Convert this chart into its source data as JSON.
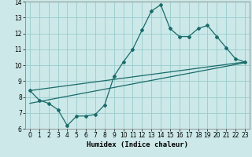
{
  "xlabel": "Humidex (Indice chaleur)",
  "xlim": [
    -0.5,
    23.5
  ],
  "ylim": [
    6,
    14
  ],
  "yticks": [
    6,
    7,
    8,
    9,
    10,
    11,
    12,
    13,
    14
  ],
  "xticks": [
    0,
    1,
    2,
    3,
    4,
    5,
    6,
    7,
    8,
    9,
    10,
    11,
    12,
    13,
    14,
    15,
    16,
    17,
    18,
    19,
    20,
    21,
    22,
    23
  ],
  "bg_color": "#cce8e8",
  "grid_color": "#99cccc",
  "line_color": "#1a6b6b",
  "line1_x": [
    0,
    1,
    2,
    3,
    4,
    5,
    6,
    7,
    8,
    9,
    10,
    11,
    12,
    13,
    14,
    15,
    16,
    17,
    18,
    19,
    20,
    21,
    22,
    23
  ],
  "line1_y": [
    8.4,
    7.8,
    7.6,
    7.2,
    6.2,
    6.8,
    6.8,
    6.9,
    7.5,
    9.3,
    10.2,
    11.0,
    12.2,
    13.4,
    13.8,
    12.3,
    11.8,
    11.8,
    12.3,
    12.5,
    11.8,
    11.1,
    10.4,
    10.2
  ],
  "line2_x": [
    0,
    23
  ],
  "line2_y": [
    7.6,
    10.15
  ],
  "line3_x": [
    0,
    23
  ],
  "line3_y": [
    8.4,
    10.2
  ]
}
